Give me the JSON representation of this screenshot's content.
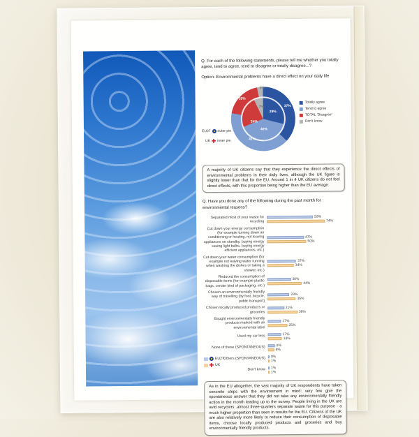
{
  "page": {
    "question1": "Q. For each of the following statements, please tell me whether you totally agree, tend to agree, tend to disagree or totally disagree...?",
    "option_line": "Option: Environmental problems have a direct effect on your daily life",
    "donut_side_labels": {
      "outer_name": "EU27",
      "outer_note": "outer pie",
      "inner_name": "UK",
      "inner_note": "inner pie"
    },
    "summary_box_1": "A majority of UK citizens say that they experience the direct effects of environmental problems in their daily lives, although the UK figure is slightly lower than that for the EU. Around 1 in 4 UK citizens do not feel direct effects, with this proportion being higher than the EU average.",
    "question2": "Q. Have you done any of the following during the past month for environmental reasons?",
    "summary_box_2": "As in the EU altogether, the vast majority of UK respondents have taken concrete steps with the environment in mind: very few give the spontaneous answer that they did not take any environmentally friendly action in the month leading up to the survey. People living in the UK are avid recyclers: almost three-quarters separate waste for this purpose - a much higher proportion than seen in results for the EU. Citizens of the UK are also relatively more likely to reduce their consumption of disposable items, choose locally produced products and groceries and buy environmentally friendly products."
  },
  "chart_data": [
    {
      "type": "pie",
      "title": "Option: Environmental problems have a direct effect on your daily life",
      "subtype": "double-donut (outer ring EU27, inner pie UK)",
      "categories": [
        "Totally agree",
        "Tend to agree",
        "TOTAL 'Disagree'",
        "Don't know"
      ],
      "colors": [
        "#2b55a0",
        "#7f9fd2",
        "#cf3b3b",
        "#b5b5b5"
      ],
      "series": [
        {
          "name": "EU27 (outer pie)",
          "values": [
            37,
            41,
            19,
            3
          ]
        },
        {
          "name": "UK (inner pie)",
          "values": [
            29,
            40,
            24,
            7
          ]
        }
      ],
      "value_suffix": "%",
      "legend_position": "right"
    },
    {
      "type": "bar",
      "orientation": "horizontal",
      "title": "Q. Have you done any of the following during the past month for environmental reasons?",
      "categories": [
        "Separated most of your waste for recycling",
        "Cut down your energy consumption (for example turning down air conditioning or heating, not leaving appliances on standby, buying energy saving light bulbs, buying energy efficient appliances, etc.)",
        "Cut down your water consumption (for example not leaving water running when washing the dishes or taking a shower, etc.)",
        "Reduced the consumption of disposable items (for example plastic bags, certain kind of packaging, etc.)",
        "Chosen an environmentally friendly way of travelling (by foot, bicycle, public transport)",
        "Chosen locally produced products or groceries",
        "Bought environmentally friendly products marked with an environmental label",
        "Used my car less",
        "None of these (SPONTANEOUS)",
        "Others (SPONTANEOUS)",
        "Don't know"
      ],
      "series": [
        {
          "name": "EU27",
          "color": "#b9c9e6",
          "values": [
            59,
            47,
            37,
            30,
            28,
            21,
            17,
            17,
            9,
            0,
            1
          ]
        },
        {
          "name": "UK",
          "color": "#f6d49c",
          "values": [
            74,
            50,
            34,
            44,
            36,
            38,
            25,
            18,
            8,
            1,
            1
          ]
        }
      ],
      "xlim": [
        0,
        80
      ],
      "value_suffix": "%",
      "grid": false,
      "legend_position": "bottom-left"
    }
  ]
}
